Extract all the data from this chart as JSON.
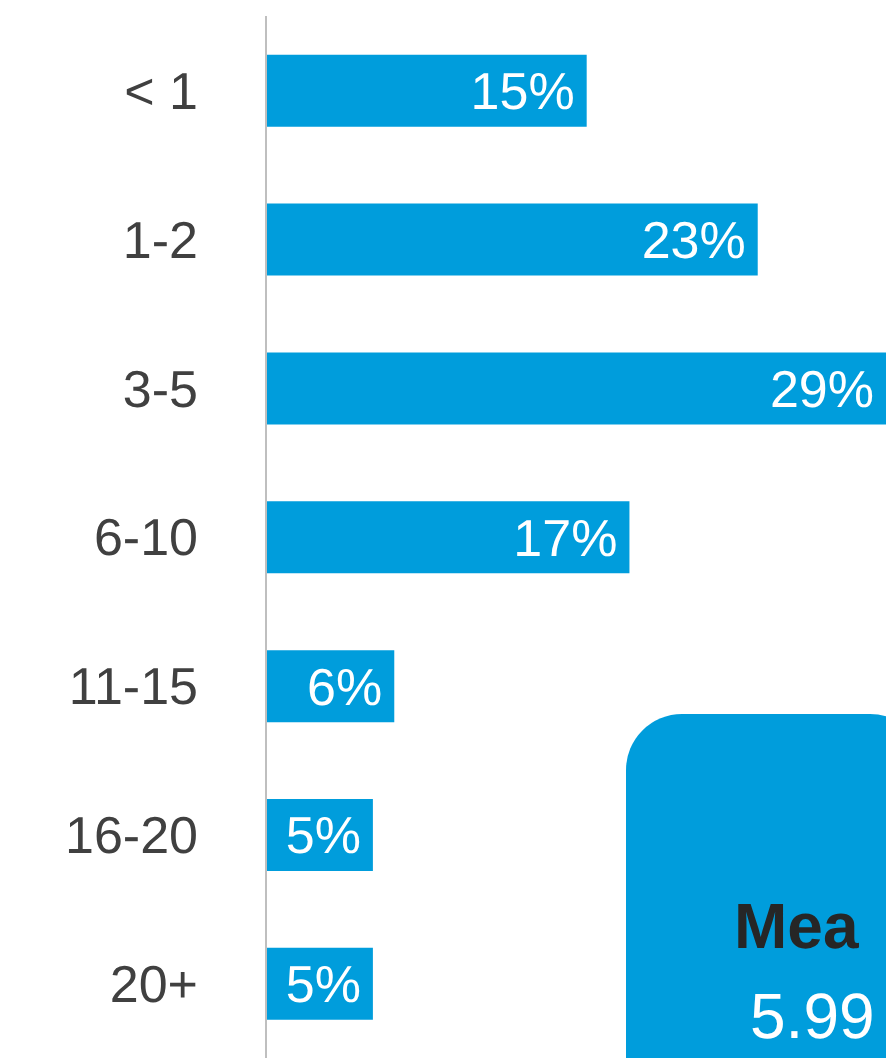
{
  "chart_data": {
    "type": "bar",
    "orientation": "horizontal",
    "categories": [
      "< 1",
      "1-2",
      "3-5",
      "6-10",
      "11-15",
      "16-20",
      "20+"
    ],
    "values": [
      15,
      23,
      29,
      17,
      6,
      5,
      5
    ],
    "value_labels": [
      "15%",
      "23%",
      "29%",
      "17%",
      "6%",
      "5%",
      "5%"
    ],
    "color": "#009ddc",
    "annotations": [
      "Mea",
      "5.99"
    ]
  }
}
